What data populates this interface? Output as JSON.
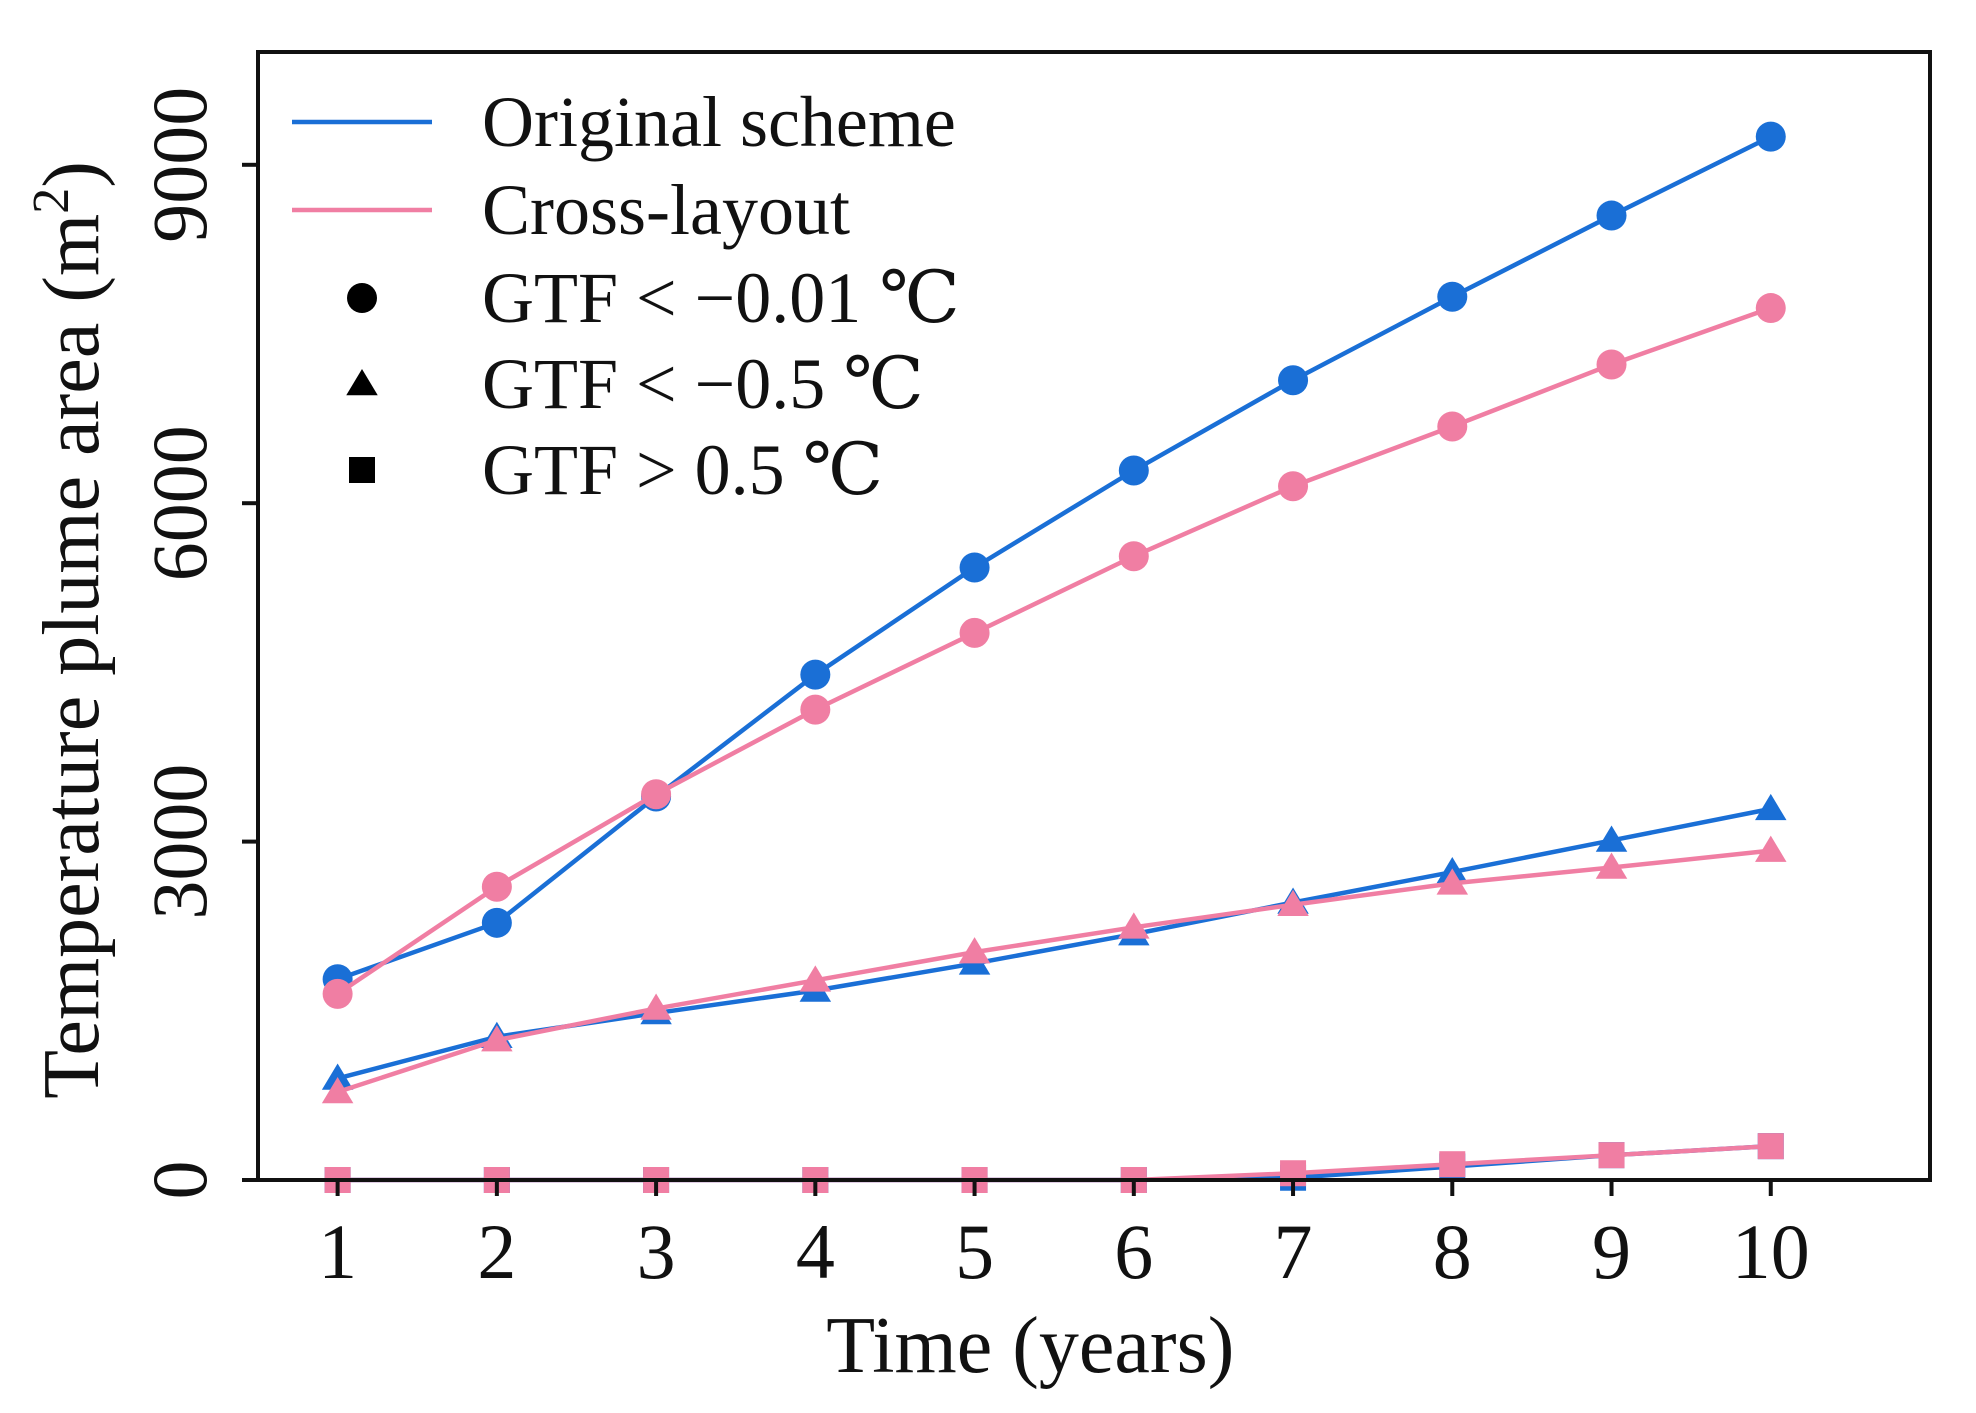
{
  "chart_data": {
    "type": "line",
    "title": "",
    "xlabel": "Time (years)",
    "ylabel": "Temperature plume area (m",
    "ylabel_sup": "2",
    "ylabel_close": ")",
    "xlim": [
      0.5,
      11.0
    ],
    "ylim": [
      0,
      10000
    ],
    "x": [
      1,
      2,
      3,
      4,
      5,
      6,
      7,
      8,
      9,
      10
    ],
    "x_ticks": [
      "1",
      "2",
      "3",
      "4",
      "5",
      "6",
      "7",
      "8",
      "9",
      "10"
    ],
    "y_ticks": [
      {
        "value": 0,
        "label": "0"
      },
      {
        "value": 3000,
        "label": "3000"
      },
      {
        "value": 6000,
        "label": "6000"
      },
      {
        "value": 9000,
        "label": "9000"
      }
    ],
    "grid": false,
    "legend_position": "top-left",
    "colors": {
      "original": "#1a6fd6",
      "cross": "#f07ea3",
      "legend_marker": "#000000"
    },
    "legend": {
      "lines": [
        {
          "label": "Original scheme",
          "scheme": "original"
        },
        {
          "label": "Cross-layout",
          "scheme": "cross"
        }
      ],
      "markers": [
        {
          "label": "GTF < −0.01 ℃",
          "marker": "circle"
        },
        {
          "label": "GTF < −0.5 ℃",
          "marker": "triangle"
        },
        {
          "label": "GTF > 0.5 ℃",
          "marker": "square"
        }
      ]
    },
    "series": [
      {
        "name": "Original scheme, GTF < −0.01 ℃",
        "scheme": "original",
        "marker": "circle",
        "values": [
          1780,
          2280,
          3400,
          4480,
          5430,
          6290,
          7090,
          7830,
          8550,
          9250
        ]
      },
      {
        "name": "Original scheme, GTF < −0.5 ℃",
        "scheme": "original",
        "marker": "triangle",
        "values": [
          900,
          1270,
          1480,
          1680,
          1920,
          2180,
          2460,
          2730,
          3010,
          3290
        ]
      },
      {
        "name": "Original scheme, GTF > 0.5 ℃",
        "scheme": "original",
        "marker": "square",
        "values": [
          0,
          0,
          0,
          0,
          0,
          0,
          20,
          120,
          220,
          300
        ]
      },
      {
        "name": "Cross-layout, GTF < −0.01 ℃",
        "scheme": "cross",
        "marker": "circle",
        "values": [
          1650,
          2600,
          3420,
          4170,
          4850,
          5530,
          6150,
          6680,
          7230,
          7730
        ]
      },
      {
        "name": "Cross-layout, GTF < −0.5 ℃",
        "scheme": "cross",
        "marker": "triangle",
        "values": [
          780,
          1240,
          1520,
          1770,
          2020,
          2240,
          2440,
          2630,
          2770,
          2920
        ]
      },
      {
        "name": "Cross-layout, GTF > 0.5 ℃",
        "scheme": "cross",
        "marker": "square",
        "values": [
          0,
          0,
          0,
          0,
          0,
          0,
          60,
          140,
          220,
          300
        ]
      }
    ]
  }
}
